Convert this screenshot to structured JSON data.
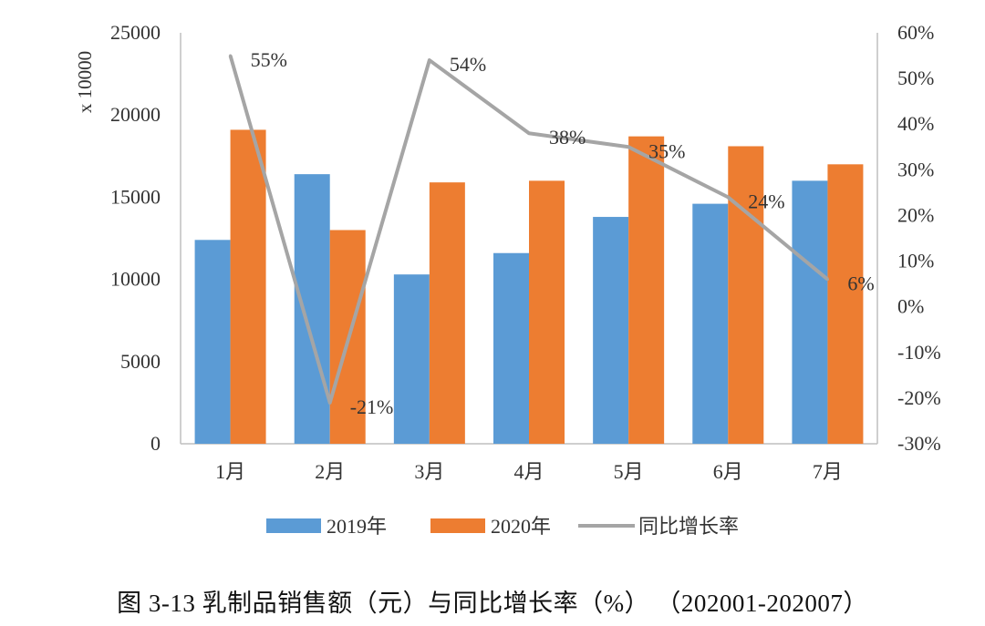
{
  "caption": "图 3-13 乳制品销售额（元）与同比增长率（%）   （202001-202007）",
  "chart_data": {
    "type": "bar",
    "categories": [
      "1月",
      "2月",
      "3月",
      "4月",
      "5月",
      "6月",
      "7月"
    ],
    "left_axis": {
      "unit_label": "x 10000",
      "ylim": [
        0,
        25000
      ],
      "ticks": [
        "25000",
        "20000",
        "15000",
        "10000",
        "5000",
        "0"
      ],
      "tick_values": [
        25000,
        20000,
        15000,
        10000,
        5000,
        0
      ]
    },
    "right_axis": {
      "ylim": [
        -30,
        60
      ],
      "ticks": [
        "60%",
        "50%",
        "40%",
        "30%",
        "20%",
        "10%",
        "0%",
        "-10%",
        "-20%",
        "-30%"
      ],
      "tick_values": [
        60,
        50,
        40,
        30,
        20,
        10,
        0,
        -10,
        -20,
        -30
      ]
    },
    "series": [
      {
        "name": "2019年",
        "type": "bar",
        "axis": "left",
        "color": "#5B9BD5",
        "values": [
          12400,
          16400,
          10300,
          11600,
          13800,
          14600,
          16000
        ]
      },
      {
        "name": "2020年",
        "type": "bar",
        "axis": "left",
        "color": "#ED7D31",
        "values": [
          19100,
          13000,
          15900,
          16000,
          18700,
          18100,
          17000
        ]
      },
      {
        "name": "同比增长率",
        "type": "line",
        "axis": "right",
        "color": "#A5A5A5",
        "values": [
          55,
          -21,
          54,
          38,
          35,
          24,
          6
        ],
        "labels": [
          "55%",
          "-21%",
          "54%",
          "38%",
          "35%",
          "24%",
          "6%"
        ]
      }
    ],
    "legend_position": "bottom",
    "grid": false
  }
}
